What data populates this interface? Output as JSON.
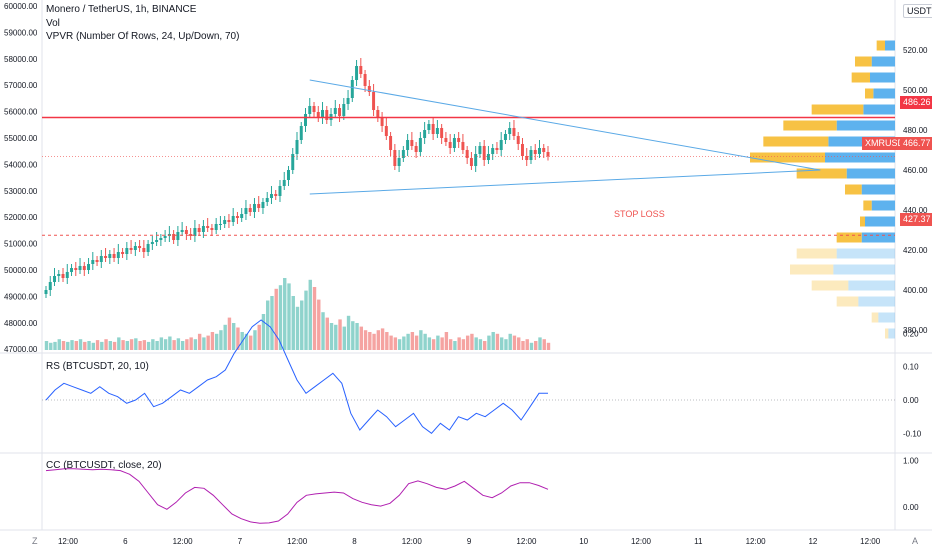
{
  "header": {
    "symbol_line": "Monero / TetherUS, 1h, BINANCE",
    "volume_label": "Vol",
    "vpvr_label": "VPVR (Number Of Rows, 24, Up/Down, 70)"
  },
  "currency_button": "USDT",
  "annotations": {
    "stop_loss_label": "STOP LOSS",
    "price_badge_red": "486.26",
    "price_badge_symbol": "XMRUSDT",
    "price_badge_current": "466.77",
    "price_badge_stop": "427.37"
  },
  "panes": {
    "rs_label": "RS (BTCUSDT, 20, 10)",
    "cc_label": "CC (BTCUSDT, close, 20)"
  },
  "colors": {
    "up": "#26a69a",
    "down": "#ef5350",
    "line": "#2962ff",
    "cc_line": "#b01fb0",
    "trend": "#5aa9e6",
    "vp_up": "#5db2ee",
    "vp_down": "#f7c244"
  },
  "chart_data": {
    "type": "candlestick",
    "left_axis_ticks": [
      "60000.00",
      "59000.00",
      "58000.00",
      "57000.00",
      "56000.00",
      "55000.00",
      "54000.00",
      "53000.00",
      "52000.00",
      "51000.00",
      "50000.00",
      "49000.00",
      "48000.00",
      "47000.00"
    ],
    "right_axis_ticks": [
      "520.00",
      "500.00",
      "480.00",
      "460.00",
      "440.00",
      "420.00",
      "400.00",
      "380.00"
    ],
    "rs_ticks": [
      "0.20",
      "0.10",
      "0.00",
      "-0.10"
    ],
    "cc_ticks": [
      "1.00",
      "0.00"
    ],
    "x_ticks": [
      "12:00",
      "6",
      "12:00",
      "7",
      "12:00",
      "8",
      "12:00",
      "9",
      "12:00",
      "10",
      "12:00",
      "11",
      "12:00",
      "12",
      "12:00"
    ],
    "price_range": [
      370,
      530
    ],
    "candles_close": [
      400,
      404,
      407,
      408,
      406,
      409,
      411,
      410,
      412,
      410,
      413,
      415,
      414,
      417,
      416,
      418,
      416,
      419,
      418,
      421,
      420,
      422,
      421,
      419,
      423,
      424,
      425,
      426,
      427,
      428,
      425,
      429,
      430,
      428,
      427,
      431,
      429,
      432,
      431,
      430,
      433,
      433,
      435,
      434,
      437,
      436,
      438,
      441,
      439,
      443,
      441,
      444,
      446,
      448,
      447,
      452,
      455,
      460,
      468,
      475,
      482,
      488,
      492,
      489,
      486,
      490,
      485,
      488,
      491,
      487,
      493,
      496,
      505,
      512,
      508,
      502,
      499,
      490,
      486,
      482,
      477,
      470,
      462,
      466,
      470,
      475,
      472,
      469,
      476,
      480,
      483,
      478,
      481,
      476,
      474,
      471,
      476,
      474,
      470,
      466,
      462,
      468,
      472,
      465,
      468,
      471,
      470,
      475,
      478,
      481,
      477,
      473,
      467,
      465,
      470,
      468,
      471,
      469,
      466.77
    ],
    "volume_max": 100,
    "volume": [
      10,
      8,
      9,
      12,
      10,
      9,
      11,
      10,
      12,
      9,
      10,
      8,
      11,
      9,
      12,
      10,
      9,
      14,
      11,
      10,
      12,
      13,
      10,
      11,
      9,
      12,
      10,
      14,
      12,
      15,
      11,
      13,
      10,
      12,
      14,
      12,
      18,
      14,
      16,
      20,
      18,
      22,
      28,
      36,
      30,
      25,
      20,
      18,
      16,
      22,
      28,
      40,
      55,
      60,
      68,
      72,
      80,
      74,
      60,
      48,
      55,
      66,
      78,
      70,
      56,
      42,
      36,
      30,
      28,
      34,
      26,
      38,
      32,
      30,
      26,
      22,
      20,
      18,
      22,
      24,
      20,
      16,
      14,
      12,
      15,
      18,
      20,
      16,
      22,
      18,
      14,
      12,
      16,
      14,
      20,
      12,
      10,
      14,
      12,
      16,
      18,
      14,
      12,
      10,
      16,
      20,
      18,
      14,
      12,
      18,
      16,
      14,
      10,
      12,
      8,
      10,
      14,
      12,
      8
    ],
    "rs_values": [
      0.0,
      0.03,
      0.05,
      0.04,
      0.03,
      0.02,
      0.04,
      0.02,
      0.01,
      -0.01,
      0.0,
      0.02,
      -0.02,
      -0.01,
      0.01,
      0.03,
      0.02,
      0.04,
      0.06,
      0.07,
      0.09,
      0.14,
      0.18,
      0.22,
      0.24,
      0.22,
      0.18,
      0.12,
      0.06,
      0.02,
      0.04,
      0.06,
      0.08,
      0.05,
      -0.04,
      -0.09,
      -0.06,
      -0.03,
      -0.05,
      -0.08,
      -0.06,
      -0.04,
      -0.08,
      -0.1,
      -0.07,
      -0.09,
      -0.05,
      -0.06,
      -0.04,
      -0.05,
      -0.03,
      -0.01,
      -0.03,
      -0.06,
      -0.02,
      0.02,
      0.02
    ],
    "cc_values": [
      0.78,
      0.8,
      0.82,
      0.82,
      0.81,
      0.8,
      0.81,
      0.8,
      0.78,
      0.7,
      0.55,
      0.3,
      0.05,
      -0.05,
      0.1,
      0.3,
      0.42,
      0.4,
      0.25,
      0.05,
      -0.15,
      -0.25,
      -0.32,
      -0.35,
      -0.34,
      -0.3,
      -0.15,
      0.1,
      0.25,
      0.28,
      0.3,
      0.32,
      0.3,
      0.18,
      0.1,
      0.05,
      0.02,
      0.08,
      0.25,
      0.5,
      0.56,
      0.5,
      0.42,
      0.38,
      0.45,
      0.55,
      0.4,
      0.25,
      0.2,
      0.3,
      0.45,
      0.52,
      0.52,
      0.46,
      0.38
    ],
    "vp_rows": [
      {
        "price": 522,
        "up": 12,
        "down": 10
      },
      {
        "price": 514,
        "up": 28,
        "down": 20
      },
      {
        "price": 506,
        "up": 30,
        "down": 22
      },
      {
        "price": 498,
        "up": 26,
        "down": 10
      },
      {
        "price": 490,
        "up": 38,
        "down": 62
      },
      {
        "price": 482,
        "up": 70,
        "down": 64
      },
      {
        "price": 474,
        "up": 80,
        "down": 78
      },
      {
        "price": 466,
        "up": 84,
        "down": 90
      },
      {
        "price": 458,
        "up": 58,
        "down": 60
      },
      {
        "price": 450,
        "up": 40,
        "down": 20
      },
      {
        "price": 442,
        "up": 28,
        "down": 10
      },
      {
        "price": 434,
        "up": 36,
        "down": 6
      },
      {
        "price": 426,
        "up": 40,
        "down": 30
      },
      {
        "price": 418,
        "up": 70,
        "down": 48
      },
      {
        "price": 410,
        "up": 74,
        "down": 52
      },
      {
        "price": 402,
        "up": 56,
        "down": 44
      },
      {
        "price": 394,
        "up": 44,
        "down": 26
      },
      {
        "price": 386,
        "up": 20,
        "down": 8
      },
      {
        "price": 378,
        "up": 8,
        "down": 4
      }
    ],
    "resistance": 486.26,
    "stop_loss": 427.37,
    "triangle_upper": {
      "from": [
        62,
        505
      ],
      "to": [
        182,
        460
      ]
    },
    "triangle_lower": {
      "from": [
        62,
        448
      ],
      "to": [
        182,
        460
      ]
    }
  }
}
